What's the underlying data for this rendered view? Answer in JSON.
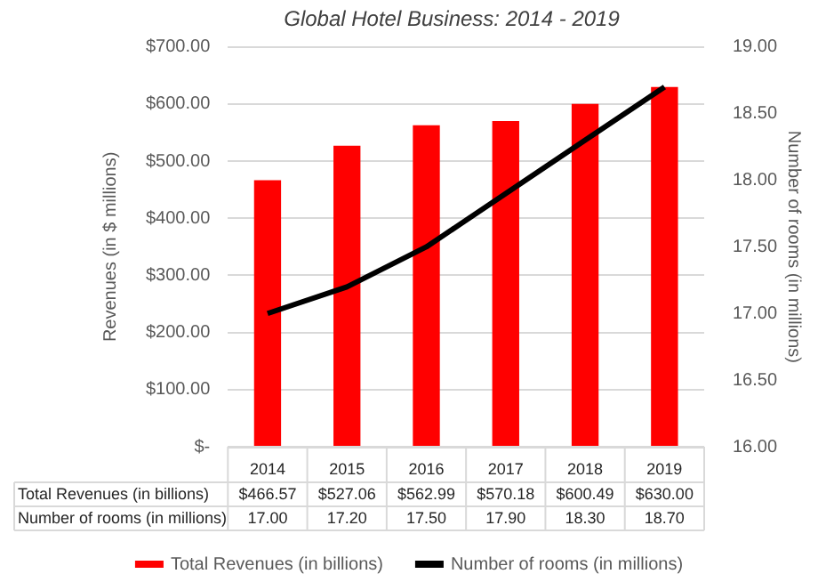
{
  "chart_data": {
    "type": "bar",
    "title": "Global Hotel Business: 2014 - 2019",
    "ylabel": "Revenues (in $ millions)",
    "y2label": "Number of rooms (in millions)",
    "categories": [
      "2014",
      "2015",
      "2016",
      "2017",
      "2018",
      "2019"
    ],
    "series": [
      {
        "name": "Total Revenues (in billions)",
        "color": "#ff0000",
        "values": [
          466.57,
          527.06,
          562.99,
          570.18,
          600.49,
          630.0
        ],
        "value_labels": [
          "$466.57",
          "$527.06",
          "$562.99",
          "$570.18",
          "$600.49",
          "$630.00"
        ]
      },
      {
        "name": "Number of rooms (in millions)",
        "type": "line",
        "axis": "y2",
        "color": "#000000",
        "marker": "none",
        "values": [
          17.0,
          17.2,
          17.5,
          17.9,
          18.3,
          18.7
        ],
        "value_labels": [
          "17.00",
          "17.20",
          "17.50",
          "17.90",
          "18.30",
          "18.70"
        ]
      }
    ],
    "ylim": [
      0,
      700
    ],
    "yticks": [
      {
        "value": 0,
        "label": "$-"
      },
      {
        "value": 100,
        "label": "$100.00"
      },
      {
        "value": 200,
        "label": "$200.00"
      },
      {
        "value": 300,
        "label": "$300.00"
      },
      {
        "value": 400,
        "label": "$400.00"
      },
      {
        "value": 500,
        "label": "$500.00"
      },
      {
        "value": 600,
        "label": "$600.00"
      },
      {
        "value": 700,
        "label": "$700.00"
      }
    ],
    "y2lim": [
      16,
      19
    ],
    "y2ticks": [
      {
        "value": 16,
        "label": "16.00"
      },
      {
        "value": 16.5,
        "label": "16.50"
      },
      {
        "value": 17,
        "label": "17.00"
      },
      {
        "value": 17.5,
        "label": "17.50"
      },
      {
        "value": 18,
        "label": "18.00"
      },
      {
        "value": 18.5,
        "label": "18.50"
      },
      {
        "value": 19,
        "label": "19.00"
      }
    ],
    "grid": "y",
    "legend": "bottom"
  }
}
